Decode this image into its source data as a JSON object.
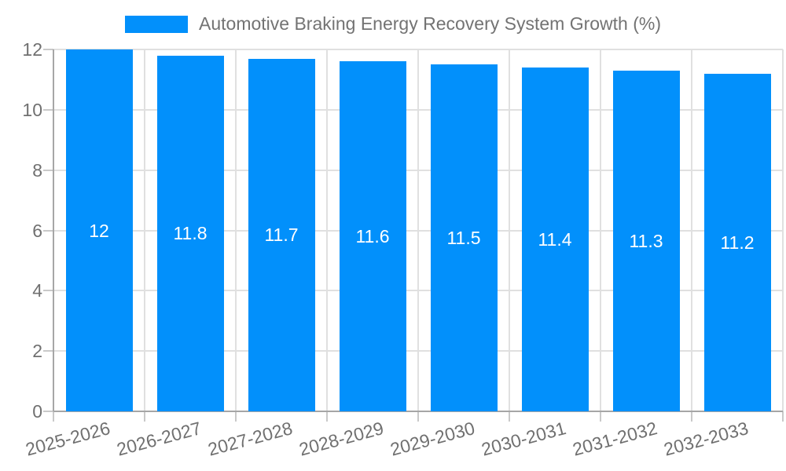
{
  "legend": {
    "label": "Automotive Braking Energy Recovery System Growth (%)"
  },
  "colors": {
    "bar": "#0290fb",
    "axis": "#a6a6a6",
    "tick": "#c9c9c9",
    "grid": "#e0e0e0",
    "label_text": "#707070",
    "value_label_text": "#ffffff",
    "background": "#ffffff"
  },
  "chart_data": {
    "type": "bar",
    "title": "Automotive Braking Energy Recovery System Growth (%)",
    "categories": [
      "2025-2026",
      "2026-2027",
      "2027-2028",
      "2028-2029",
      "2029-2030",
      "2030-2031",
      "2031-2032",
      "2032-2033"
    ],
    "values": [
      12,
      11.8,
      11.7,
      11.6,
      11.5,
      11.4,
      11.3,
      11.2
    ],
    "value_labels": [
      "12",
      "11.8",
      "11.7",
      "11.6",
      "11.5",
      "11.4",
      "11.3",
      "11.2"
    ],
    "xlabel": "",
    "ylabel": "",
    "ylim": [
      0,
      12
    ],
    "yticks": [
      0,
      2,
      4,
      6,
      8,
      10,
      12
    ],
    "grid": true,
    "legend_position": "top",
    "x_label_rotation_deg": -15,
    "value_label_position": "inside-middle"
  }
}
